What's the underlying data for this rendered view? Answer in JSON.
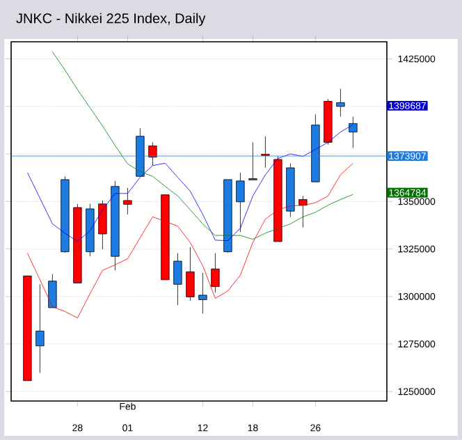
{
  "chart_data": {
    "type": "candlestick",
    "title": "JNKC - Nikkei 225 Index, Daily",
    "categories": [
      null,
      null,
      null,
      null,
      "28",
      null,
      null,
      null,
      "01",
      null,
      null,
      null,
      null,
      null,
      "12",
      null,
      null,
      null,
      "18",
      null,
      null,
      null,
      null,
      "26",
      null,
      null,
      null
    ],
    "ohlc": [
      [
        1310800,
        1310800,
        1255700,
        1255700
      ],
      [
        1274000,
        1306400,
        1259800,
        1281800
      ],
      [
        1294100,
        1311800,
        1294100,
        1308100
      ],
      [
        1323500,
        1363200,
        1323000,
        1361500
      ],
      [
        1346800,
        1348700,
        1307100,
        1307100
      ],
      [
        1323500,
        1348700,
        1321100,
        1346100
      ],
      [
        1348700,
        1350500,
        1324800,
        1332900
      ],
      [
        1321100,
        1360800,
        1313700,
        1357900
      ],
      [
        1350500,
        1357100,
        1343200,
        1348500
      ],
      [
        1363200,
        1388500,
        1363200,
        1384300
      ],
      [
        1379200,
        1381100,
        1368900,
        1373300
      ],
      [
        1353500,
        1353500,
        1308800,
        1308800
      ],
      [
        1306400,
        1322800,
        1295400,
        1318600
      ],
      [
        1313000,
        1326000,
        1297800,
        1299800
      ],
      [
        1298300,
        1312500,
        1291000,
        1300700
      ],
      [
        1314500,
        1322800,
        1302000,
        1305200
      ],
      [
        1323500,
        1361500,
        1323000,
        1361500
      ],
      [
        1349800,
        1365200,
        1333800,
        1360800
      ],
      [
        1361300,
        1381100,
        1361300,
        1362000
      ],
      [
        1374800,
        1384300,
        1367700,
        1374200
      ],
      [
        1372100,
        1373700,
        1328900,
        1328900
      ],
      [
        1344900,
        1370100,
        1341900,
        1367700
      ],
      [
        1351000,
        1352900,
        1336300,
        1348000
      ],
      [
        1360300,
        1395800,
        1360300,
        1390200
      ],
      [
        1402700,
        1403900,
        1379900,
        1381100
      ],
      [
        1400000,
        1409300,
        1394600,
        1402000
      ],
      [
        1386500,
        1394600,
        1378200,
        1391000
      ]
    ],
    "colors": [
      "#ff0000",
      "#1e7be0",
      "#1e7be0",
      "#1e7be0",
      "#ff0000",
      "#1e7be0",
      "#ff0000",
      "#1e7be0",
      "#ff0000",
      "#1e7be0",
      "#ff0000",
      "#ff0000",
      "#1e7be0",
      "#ff0000",
      "#1e7be0",
      "#ff0000",
      "#1e7be0",
      "#1e7be0",
      "#1e7be0",
      "#ff0000",
      "#ff0000",
      "#1e7be0",
      "#ff0000",
      "#1e7be0",
      "#ff0000",
      "#1e7be0",
      "#1e7be0"
    ],
    "series": [
      {
        "type": "line",
        "color": "#0000ff",
        "values": [
          1365200,
          1351700,
          1338200,
          1333300,
          1328900,
          1334600,
          1345600,
          1354200,
          1354200,
          1362700,
          1368900,
          1370100,
          1362700,
          1355400,
          1343200,
          1329600,
          1329400,
          1335800,
          1352900,
          1364000,
          1372600,
          1375000,
          1373700,
          1377400,
          1381100,
          1386500,
          1390400
        ]
      },
      {
        "type": "line",
        "color": "#ff0000",
        "values": [
          1322800,
          1308800,
          1294600,
          1292100,
          1288700,
          1301500,
          1313700,
          1316700,
          1319800,
          1330900,
          1341900,
          1339500,
          1337000,
          1328400,
          1316200,
          1299000,
          1302900,
          1311200,
          1328400,
          1340700,
          1345600,
          1347600,
          1348000,
          1349300,
          1352900,
          1364000,
          1370100
        ]
      },
      {
        "type": "line",
        "color": "#008000",
        "values": [
          null,
          null,
          1428700,
          1419100,
          1408800,
          1399300,
          1389700,
          1379400,
          1369800,
          1365700,
          1363200,
          1357900,
          1352900,
          1345600,
          1338200,
          1332100,
          1332100,
          1332100,
          1330100,
          1333300,
          1335800,
          1338200,
          1341900,
          1344300,
          1348000,
          1351000,
          1353700
        ]
      }
    ],
    "ylim": [
      1245000,
      1434000
    ],
    "yticks": [
      1250000,
      1275000,
      1300000,
      1325000,
      1350000,
      {
        "value": 1375000,
        "label": null
      },
      {
        "value": 1400000,
        "label": null
      },
      1425000
    ],
    "grid": "y",
    "ref_lines": [
      {
        "axis": "y",
        "value": 1373907,
        "label": "1373907",
        "color": "#1e7be0"
      }
    ],
    "annotations": [
      "1398687",
      "1364784",
      "Feb"
    ]
  }
}
